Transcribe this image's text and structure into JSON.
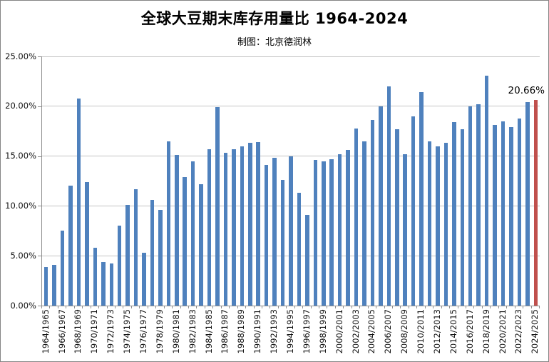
{
  "title": "全球大豆期末库存用量比 1964-2024",
  "subtitle": "制图：北京德润林",
  "colors": {
    "bar": "#4F81BD",
    "highlight": "#C0504D",
    "gridline": "#C3C3C3",
    "axis": "#8E8E8E",
    "text": "#000000",
    "frame_border": "#848484"
  },
  "chart_data": {
    "type": "bar",
    "title": "全球大豆期末库存用量比 1964-2024",
    "subtitle": "制图：北京德润林",
    "xlabel": "",
    "ylabel": "",
    "ylim": [
      0,
      25
    ],
    "grid": true,
    "y_ticks": [
      {
        "value": 0,
        "label": "0.00%"
      },
      {
        "value": 5,
        "label": "5.00%"
      },
      {
        "value": 10,
        "label": "10.00%"
      },
      {
        "value": 15,
        "label": "15.00%"
      },
      {
        "value": 20,
        "label": "20.00%"
      },
      {
        "value": 25,
        "label": "25.00%"
      }
    ],
    "x_tick_every": 2,
    "categories": [
      "1964/1965",
      "1965/1966",
      "1966/1967",
      "1967/1968",
      "1968/1969",
      "1969/1970",
      "1970/1971",
      "1971/1972",
      "1972/1973",
      "1973/1974",
      "1974/1975",
      "1975/1976",
      "1976/1977",
      "1977/1978",
      "1978/1979",
      "1979/1980",
      "1980/1981",
      "1981/1982",
      "1982/1983",
      "1983/1984",
      "1984/1985",
      "1985/1986",
      "1986/1987",
      "1987/1988",
      "1988/1989",
      "1989/1990",
      "1990/1991",
      "1991/1992",
      "1992/1993",
      "1993/1994",
      "1994/1995",
      "1995/1996",
      "1996/1997",
      "1997/1998",
      "1998/1999",
      "1999/2000",
      "2000/2001",
      "2001/2002",
      "2002/2003",
      "2003/2004",
      "2004/2005",
      "2005/2006",
      "2006/2007",
      "2007/2008",
      "2008/2009",
      "2009/2010",
      "2010/2011",
      "2011/2012",
      "2012/2013",
      "2013/2014",
      "2014/2015",
      "2015/2016",
      "2016/2017",
      "2017/2018",
      "2018/2019",
      "2019/2020",
      "2020/2021",
      "2021/2022",
      "2022/2023",
      "2023/2024",
      "2024/2025"
    ],
    "values": [
      3.9,
      4.1,
      7.5,
      12.0,
      20.8,
      12.4,
      5.8,
      4.4,
      4.2,
      8.0,
      10.1,
      11.7,
      5.3,
      10.6,
      9.6,
      16.5,
      15.1,
      12.9,
      14.5,
      12.2,
      15.7,
      19.9,
      15.3,
      15.7,
      16.0,
      16.3,
      16.4,
      14.1,
      14.8,
      12.6,
      15.0,
      11.3,
      9.1,
      14.6,
      14.5,
      14.7,
      15.2,
      15.6,
      17.8,
      16.5,
      18.6,
      20.0,
      22.0,
      17.7,
      15.2,
      19.0,
      21.4,
      16.5,
      16.0,
      16.3,
      18.4,
      17.7,
      20.0,
      20.2,
      23.1,
      18.1,
      18.5,
      17.9,
      18.8,
      20.4,
      20.66
    ],
    "highlight_index": 60,
    "highlight_label": "20.66%",
    "legend": "none"
  }
}
